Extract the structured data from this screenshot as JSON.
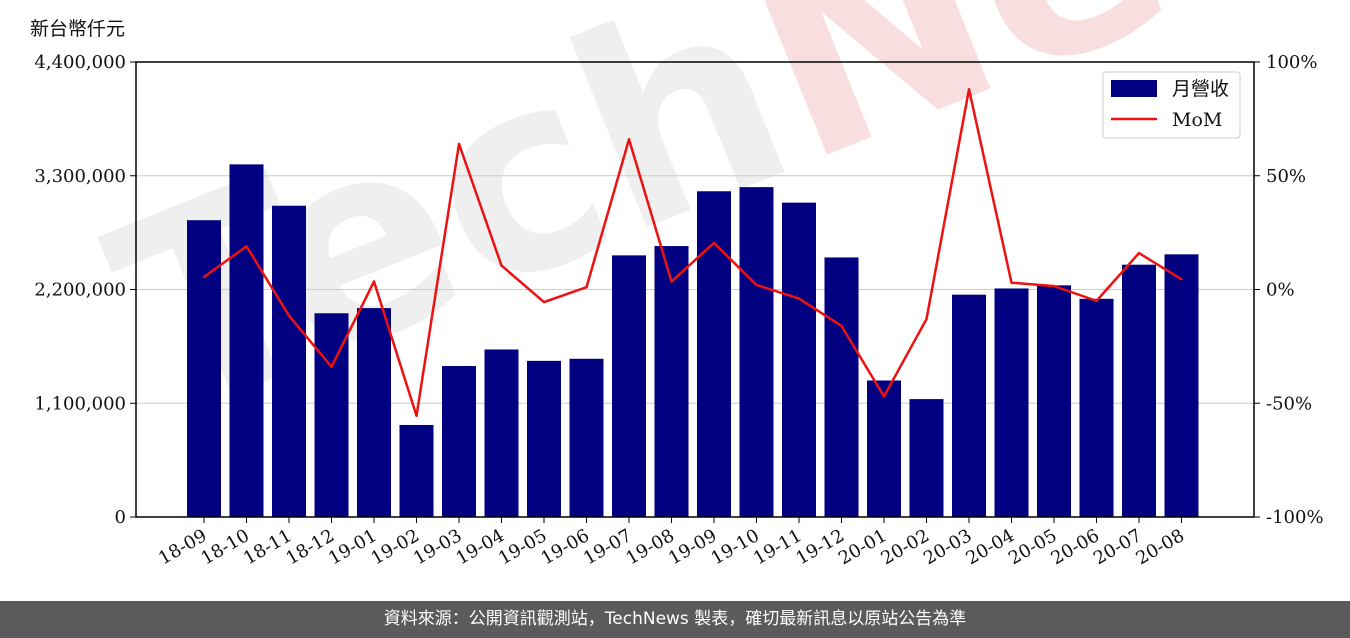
{
  "unit_label": "新台幣仟元",
  "footer_text": "資料來源：公開資訊觀測站，TechNews 製表，確切最新訊息以原站公告為準",
  "watermark": "TechNews",
  "colors": {
    "bar": "#000080",
    "line": "#ee1111",
    "grid": "#cccccc",
    "footer_bg": "#5b5b5b"
  },
  "chart_data": {
    "type": "bar",
    "categories": [
      "18-09",
      "18-10",
      "18-11",
      "18-12",
      "19-01",
      "19-02",
      "19-03",
      "19-04",
      "19-05",
      "19-06",
      "19-07",
      "19-08",
      "19-09",
      "19-10",
      "19-11",
      "19-12",
      "20-01",
      "20-02",
      "20-03",
      "20-04",
      "20-05",
      "20-06",
      "20-07",
      "20-08"
    ],
    "series": [
      {
        "name": "月營收",
        "type": "bar",
        "axis": "left",
        "values": [
          2870000,
          3410000,
          3010000,
          1970000,
          2020000,
          890000,
          1460000,
          1620000,
          1510000,
          1530000,
          2530000,
          2620000,
          3150000,
          3190000,
          3040000,
          2510000,
          1320000,
          1140000,
          2150000,
          2210000,
          2240000,
          2110000,
          2440000,
          2540000
        ]
      },
      {
        "name": "MoM",
        "type": "line",
        "axis": "right",
        "values": [
          5.5,
          19,
          -11.5,
          -34,
          3.5,
          -55.5,
          64,
          10.5,
          -5.5,
          1,
          66,
          3.5,
          20.5,
          2,
          -4,
          -16,
          -47,
          -13,
          88,
          3,
          1.5,
          -5,
          16,
          4.5
        ]
      }
    ],
    "y_left": {
      "min": 0,
      "max": 4400000,
      "ticks": [
        "0",
        "1,100,000",
        "2,200,000",
        "3,300,000",
        "4,400,000"
      ]
    },
    "y_right": {
      "min": -100,
      "max": 100,
      "ticks": [
        "-100%",
        "-50%",
        "0%",
        "50%",
        "100%"
      ]
    },
    "grid": true,
    "legend": {
      "position": "top-right",
      "entries": [
        "月營收",
        "MoM"
      ]
    }
  }
}
